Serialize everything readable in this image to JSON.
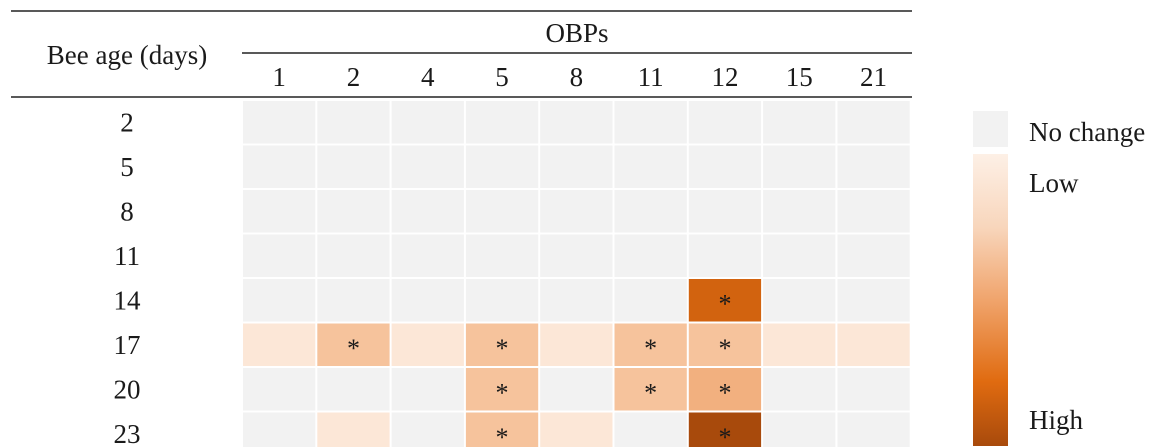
{
  "chart_data": {
    "type": "heatmap",
    "row_header": "Bee age (days)",
    "column_group_label": "OBPs",
    "columns": [
      "1",
      "2",
      "4",
      "5",
      "8",
      "11",
      "12",
      "15",
      "21"
    ],
    "rows": [
      {
        "label": "2",
        "values": [
          0,
          0,
          0,
          0,
          0,
          0,
          0,
          0,
          0
        ],
        "significant": [
          false,
          false,
          false,
          false,
          false,
          false,
          false,
          false,
          false
        ]
      },
      {
        "label": "5",
        "values": [
          0,
          0,
          0,
          0,
          0,
          0,
          0,
          0,
          0
        ],
        "significant": [
          false,
          false,
          false,
          false,
          false,
          false,
          false,
          false,
          false
        ]
      },
      {
        "label": "8",
        "values": [
          0,
          0,
          0,
          0,
          0,
          0,
          0,
          0,
          0
        ],
        "significant": [
          false,
          false,
          false,
          false,
          false,
          false,
          false,
          false,
          false
        ]
      },
      {
        "label": "11",
        "values": [
          0,
          0,
          0,
          0,
          0,
          0,
          0,
          0,
          0
        ],
        "significant": [
          false,
          false,
          false,
          false,
          false,
          false,
          false,
          false,
          false
        ]
      },
      {
        "label": "14",
        "values": [
          0,
          0,
          0,
          0,
          0,
          0,
          0.85,
          0,
          0
        ],
        "significant": [
          false,
          false,
          false,
          false,
          false,
          false,
          true,
          false,
          false
        ]
      },
      {
        "label": "17",
        "values": [
          0.05,
          0.25,
          0.05,
          0.25,
          0.05,
          0.25,
          0.25,
          0.05,
          0.05
        ],
        "significant": [
          false,
          true,
          false,
          true,
          false,
          true,
          true,
          false,
          false
        ]
      },
      {
        "label": "20",
        "values": [
          0,
          0,
          0,
          0.25,
          0,
          0.25,
          0.4,
          0,
          0
        ],
        "significant": [
          false,
          false,
          false,
          true,
          false,
          true,
          true,
          false,
          false
        ]
      },
      {
        "label": "23",
        "values": [
          0,
          0.05,
          0,
          0.25,
          0.05,
          0,
          1.0,
          0,
          0
        ],
        "significant": [
          false,
          false,
          false,
          true,
          false,
          false,
          true,
          false,
          false
        ]
      }
    ],
    "significance_marker": "*",
    "legend": {
      "no_change_label": "No change",
      "low_label": "Low",
      "high_label": "High",
      "no_change_color": "#f2f2f2",
      "gradient": [
        "#fdf0e6",
        "#f6c39c",
        "#f0a46c",
        "#e06b10",
        "#a84a0c"
      ]
    }
  }
}
